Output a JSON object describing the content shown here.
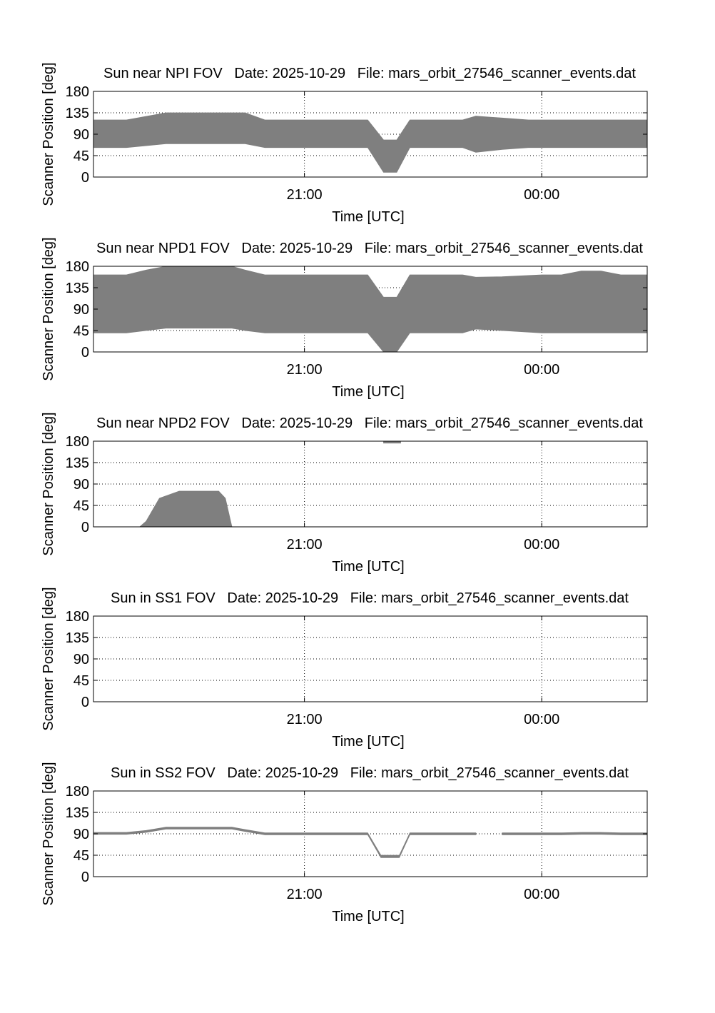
{
  "colors": {
    "band": "#7f7f7f",
    "axis": "#000000",
    "grid": "#000000",
    "background": "#ffffff"
  },
  "chart_data": [
    {
      "type": "area",
      "title": "Sun near NPI FOV   Date: 2025-10-29   File: mars_orbit_27546_scanner_events.dat",
      "xlabel": "Time [UTC]",
      "ylabel": "Scanner Position [deg]",
      "ylim": [
        0,
        180
      ],
      "yticks": [
        "0",
        "45",
        "90",
        "135",
        "180"
      ],
      "xticks": [
        "21:00",
        "00:00"
      ],
      "xlim": [
        "18:20",
        "01:20"
      ],
      "grid": true,
      "segments": [
        {
          "x": [
            "18:20",
            "18:45",
            "19:15",
            "19:45",
            "20:15",
            "20:30",
            "20:55",
            "21:05",
            "21:30",
            "21:48",
            "22:00",
            "22:10",
            "22:20",
            "22:30",
            "22:45",
            "23:00",
            "23:10",
            "23:20",
            "23:30",
            "23:50",
            "00:00",
            "00:30",
            "01:00",
            "01:20"
          ],
          "low": [
            62,
            62,
            70,
            70,
            70,
            62,
            62,
            62,
            62,
            62,
            10,
            10,
            62,
            62,
            62,
            62,
            52,
            55,
            58,
            62,
            62,
            62,
            62,
            62
          ],
          "high": [
            120,
            120,
            135,
            135,
            135,
            120,
            120,
            120,
            120,
            120,
            78,
            78,
            120,
            120,
            120,
            120,
            128,
            126,
            124,
            120,
            120,
            120,
            120,
            120
          ]
        }
      ]
    },
    {
      "type": "area",
      "title": "Sun near NPD1 FOV   Date: 2025-10-29   File: mars_orbit_27546_scanner_events.dat",
      "xlabel": "Time [UTC]",
      "ylabel": "Scanner Position [deg]",
      "ylim": [
        0,
        180
      ],
      "yticks": [
        "0",
        "45",
        "90",
        "135",
        "180"
      ],
      "xticks": [
        "21:00",
        "00:00"
      ],
      "xlim": [
        "18:20",
        "01:20"
      ],
      "grid": true,
      "segments": [
        {
          "x": [
            "18:20",
            "18:45",
            "19:00",
            "19:15",
            "19:45",
            "20:05",
            "20:15",
            "20:30",
            "21:00",
            "21:30",
            "21:48",
            "22:00",
            "22:10",
            "22:20",
            "22:30",
            "23:00",
            "23:10",
            "23:30",
            "00:00",
            "00:15",
            "00:30",
            "00:45",
            "01:00",
            "01:20"
          ],
          "low": [
            40,
            40,
            45,
            50,
            50,
            50,
            45,
            40,
            40,
            40,
            40,
            0,
            0,
            40,
            40,
            40,
            48,
            45,
            40,
            40,
            40,
            40,
            40,
            40
          ],
          "high": [
            162,
            162,
            172,
            180,
            180,
            180,
            172,
            162,
            162,
            162,
            162,
            115,
            115,
            162,
            162,
            162,
            157,
            158,
            162,
            162,
            170,
            170,
            162,
            162
          ]
        }
      ]
    },
    {
      "type": "area",
      "title": "Sun near NPD2 FOV   Date: 2025-10-29   File: mars_orbit_27546_scanner_events.dat",
      "xlabel": "Time [UTC]",
      "ylabel": "Scanner Position [deg]",
      "ylim": [
        0,
        180
      ],
      "yticks": [
        "0",
        "45",
        "90",
        "135",
        "180"
      ],
      "xticks": [
        "21:00",
        "00:00"
      ],
      "xlim": [
        "18:20",
        "01:20"
      ],
      "grid": true,
      "segments": [
        {
          "x": [
            "18:55",
            "19:00",
            "19:10",
            "19:25",
            "19:55",
            "20:00",
            "20:05"
          ],
          "low": [
            0,
            0,
            0,
            0,
            0,
            0,
            0
          ],
          "high": [
            0,
            12,
            60,
            75,
            75,
            60,
            0
          ]
        },
        {
          "x": [
            "22:00",
            "22:13"
          ],
          "low": [
            176,
            176
          ],
          "high": [
            180,
            180
          ]
        }
      ]
    },
    {
      "type": "area",
      "title": "Sun in SS1 FOV   Date: 2025-10-29   File: mars_orbit_27546_scanner_events.dat",
      "xlabel": "Time [UTC]",
      "ylabel": "Scanner Position [deg]",
      "ylim": [
        0,
        180
      ],
      "yticks": [
        "0",
        "45",
        "90",
        "135",
        "180"
      ],
      "xticks": [
        "21:00",
        "00:00"
      ],
      "xlim": [
        "18:20",
        "01:20"
      ],
      "grid": true,
      "segments": []
    },
    {
      "type": "area",
      "title": "Sun in SS2 FOV   Date: 2025-10-29   File: mars_orbit_27546_scanner_events.dat",
      "xlabel": "Time [UTC]",
      "ylabel": "Scanner Position [deg]",
      "ylim": [
        0,
        180
      ],
      "yticks": [
        "0",
        "45",
        "90",
        "135",
        "180"
      ],
      "xticks": [
        "21:00",
        "00:00"
      ],
      "xlim": [
        "18:20",
        "01:20"
      ],
      "grid": true,
      "segments": [
        {
          "x": [
            "18:20",
            "18:45",
            "19:00",
            "19:15",
            "19:45",
            "20:05",
            "20:15",
            "20:30",
            "21:00",
            "21:30",
            "21:48",
            "21:58",
            "22:12",
            "22:20",
            "22:30",
            "23:00",
            "23:10"
          ],
          "low": [
            89,
            89,
            93,
            100,
            100,
            100,
            95,
            88,
            88,
            88,
            88,
            40,
            40,
            88,
            88,
            88,
            88
          ],
          "high": [
            93,
            93,
            97,
            104,
            104,
            104,
            99,
            92,
            92,
            92,
            92,
            45,
            45,
            92,
            92,
            92,
            92
          ]
        },
        {
          "x": [
            "23:30",
            "00:00",
            "00:15",
            "00:30",
            "00:45",
            "01:00",
            "01:20"
          ],
          "low": [
            88,
            88,
            88,
            89,
            89,
            88,
            88
          ],
          "high": [
            92,
            92,
            92,
            93,
            93,
            92,
            92
          ]
        }
      ]
    }
  ]
}
